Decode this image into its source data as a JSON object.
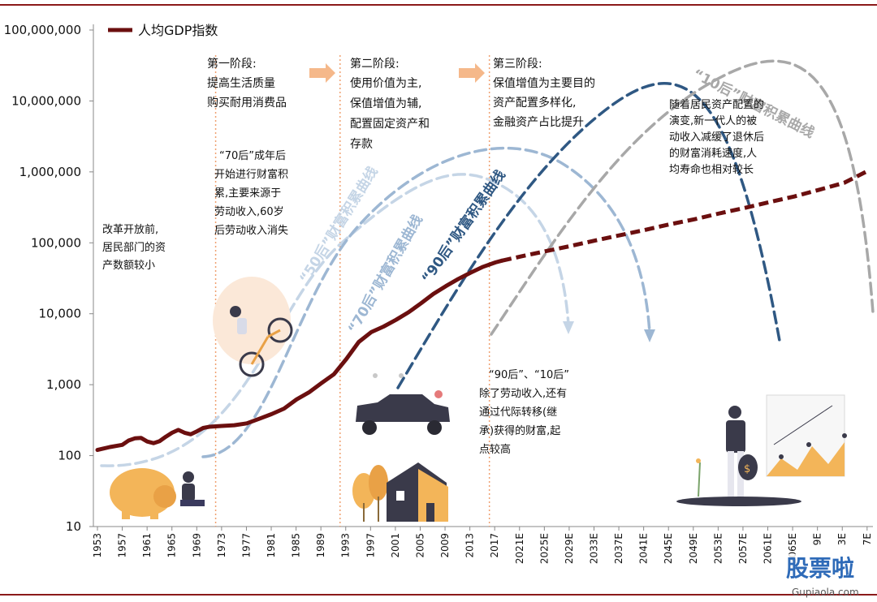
{
  "chart_data": {
    "type": "line",
    "title": "",
    "legend": {
      "label": "人均GDP指数",
      "color": "#6b0f0f",
      "placement": "top-left"
    },
    "yaxis": {
      "scale": "log",
      "ylim": [
        10,
        100000000
      ],
      "tick_labels": [
        "100,000,000",
        "10,000,000",
        "1,000,000",
        "100,000",
        "10,000",
        "1,000",
        "100",
        "10"
      ],
      "tick_values": [
        100000000,
        10000000,
        1000000,
        100000,
        10000,
        1000,
        100,
        10
      ]
    },
    "xaxis": {
      "tick_labels": [
        "1953",
        "1957",
        "1961",
        "1965",
        "1969",
        "1973",
        "1977",
        "1981",
        "1985",
        "1989",
        "1993",
        "1997",
        "2001",
        "2005",
        "2009",
        "2013",
        "2017",
        "2021E",
        "2025E",
        "2029E",
        "2033E",
        "2037E",
        "2041E",
        "2045E",
        "2049E",
        "2053E",
        "2057E",
        "2061E",
        "2065E",
        "9E",
        "3E",
        "7E"
      ],
      "range": [
        1953,
        2077
      ]
    },
    "series": [
      {
        "name": "人均GDP指数",
        "color": "#6b0f0f",
        "actual": {
          "x": [
            1953,
            1955,
            1957,
            1958,
            1959,
            1960,
            1961,
            1962,
            1963,
            1964,
            1965,
            1966,
            1967,
            1968,
            1969,
            1970,
            1971,
            1973,
            1975,
            1977,
            1979,
            1981,
            1983,
            1985,
            1987,
            1989,
            1991,
            1993,
            1995,
            1997,
            1999,
            2001,
            2003,
            2005,
            2007,
            2009,
            2011,
            2013,
            2015,
            2017,
            2018
          ],
          "y": [
            120,
            132,
            142,
            163,
            175,
            178,
            158,
            150,
            160,
            185,
            210,
            230,
            210,
            200,
            220,
            245,
            255,
            262,
            268,
            285,
            330,
            385,
            460,
            620,
            780,
            1050,
            1400,
            2300,
            4000,
            5500,
            6600,
            8200,
            10500,
            14000,
            19000,
            24500,
            31000,
            38000,
            46000,
            53000,
            56000
          ]
        },
        "forecast": {
          "x": [
            2018,
            2021,
            2025,
            2029,
            2033,
            2037,
            2041,
            2045,
            2049,
            2053,
            2057,
            2061,
            2065,
            2069,
            2073,
            2077
          ],
          "y": [
            56000,
            64000,
            76000,
            90000,
            108000,
            128000,
            152000,
            182000,
            215000,
            260000,
            310000,
            375000,
            450000,
            560000,
            700000,
            1050000
          ]
        }
      }
    ],
    "stage_dividers": [
      1972,
      1992,
      2016
    ],
    "stages": [
      {
        "title": "第一阶段:",
        "lines": [
          "提高生活质量",
          "购买耐用消费品"
        ]
      },
      {
        "title": "第二阶段:",
        "lines": [
          "使用价值为主,",
          "保值增值为辅,",
          "配置固定资产和",
          "存款"
        ]
      },
      {
        "title": "第三阶段:",
        "lines": [
          "保值增值为主要目的",
          "资产配置多样化,",
          "金融资产占比提升"
        ]
      }
    ],
    "wealth_curves": [
      {
        "label": "“50后”财富积累曲线",
        "color": "#c5d5e6"
      },
      {
        "label": "“70后”财富积累曲线",
        "color": "#9db7d3"
      },
      {
        "label": "“90后”财富积累曲线",
        "color": "#2f5883"
      },
      {
        "label": "“10后”财富积累曲线",
        "color": "#a8a8a8"
      }
    ],
    "annotations": {
      "pre_reform": [
        "改革开放前,",
        "居民部门的资",
        "产数额较小"
      ],
      "gen70": [
        "“70后”成年后",
        "开始进行财富积",
        "累,主要来源于",
        "劳动收入,60岁",
        "后劳动收入消失"
      ],
      "gen90_10": [
        "“90后”、“10后”",
        "除了劳动收入,还有",
        "通过代际转移(继",
        "承)获得的财富,起",
        "点较高"
      ],
      "new_gen": [
        "随着居民资产配置的",
        "演变,新一代人的被",
        "动收入减缓了退休后",
        "的财富消耗速度,人",
        "均寿命也相对较长"
      ]
    },
    "watermark": {
      "brand": "股票啦",
      "site": "Gupiaola.com"
    }
  }
}
